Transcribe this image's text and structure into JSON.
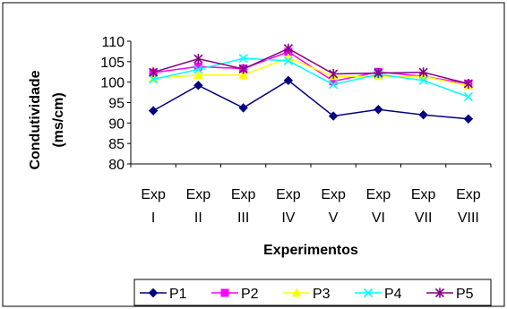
{
  "chart_data": {
    "type": "line",
    "categories": [
      [
        "Exp",
        "I"
      ],
      [
        "Exp",
        "II"
      ],
      [
        "Exp",
        "III"
      ],
      [
        "Exp",
        "IV"
      ],
      [
        "Exp",
        "V"
      ],
      [
        "Exp",
        "VI"
      ],
      [
        "Exp",
        "VII"
      ],
      [
        "Exp",
        "VIII"
      ]
    ],
    "series": [
      {
        "name": "P1",
        "color": "#000080",
        "marker": "diamond",
        "values": [
          93,
          99.2,
          93.7,
          100.4,
          91.7,
          93.3,
          92,
          91
        ]
      },
      {
        "name": "P2",
        "color": "#ff00ff",
        "marker": "square",
        "values": [
          102.3,
          103.8,
          103.3,
          107.4,
          100.2,
          102.5,
          101.4,
          99.6
        ]
      },
      {
        "name": "P3",
        "color": "#ffff00",
        "marker": "triangle",
        "values": [
          101,
          101.7,
          101.7,
          105.9,
          101.4,
          101.4,
          101.4,
          99.1
        ]
      },
      {
        "name": "P4",
        "color": "#00ffff",
        "marker": "x",
        "values": [
          100.7,
          103.1,
          105.8,
          105.2,
          99.4,
          101.9,
          100.4,
          96.4
        ]
      },
      {
        "name": "P5",
        "color": "#800080",
        "marker": "star",
        "values": [
          102.4,
          105.7,
          103.2,
          108.2,
          102,
          102.2,
          102.4,
          99.6
        ]
      }
    ],
    "y_ticks": [
      "80",
      "85",
      "90",
      "95",
      "100",
      "105",
      "110"
    ],
    "ylim": [
      80,
      110
    ],
    "xlabel": "Experimentos",
    "ylabel": [
      "Condutividade",
      "(ms/cm)"
    ],
    "grid": false,
    "legend_position": "bottom"
  }
}
